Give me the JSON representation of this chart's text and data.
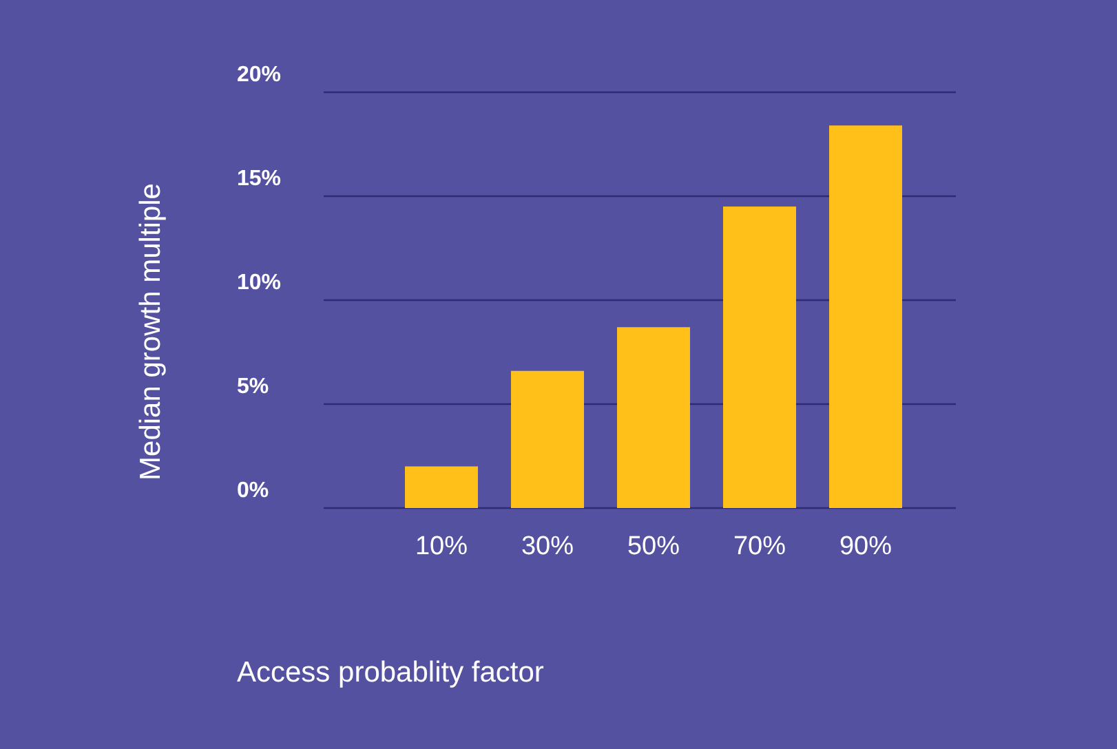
{
  "chart_data": {
    "type": "bar",
    "xlabel": "Access probablity factor",
    "ylabel": "Median growth multiple",
    "categories": [
      "10%",
      "30%",
      "50%",
      "70%",
      "90%"
    ],
    "values": [
      2,
      6.6,
      8.7,
      14.5,
      18.4
    ],
    "color": "#ffc119",
    "ylim": [
      0,
      20
    ],
    "yticks": [
      {
        "value": 0,
        "label": "0%"
      },
      {
        "value": 5,
        "label": "5%"
      },
      {
        "value": 10,
        "label": "10%"
      },
      {
        "value": 15,
        "label": "15%"
      },
      {
        "value": 20,
        "label": "20%"
      }
    ],
    "grid": "y"
  }
}
